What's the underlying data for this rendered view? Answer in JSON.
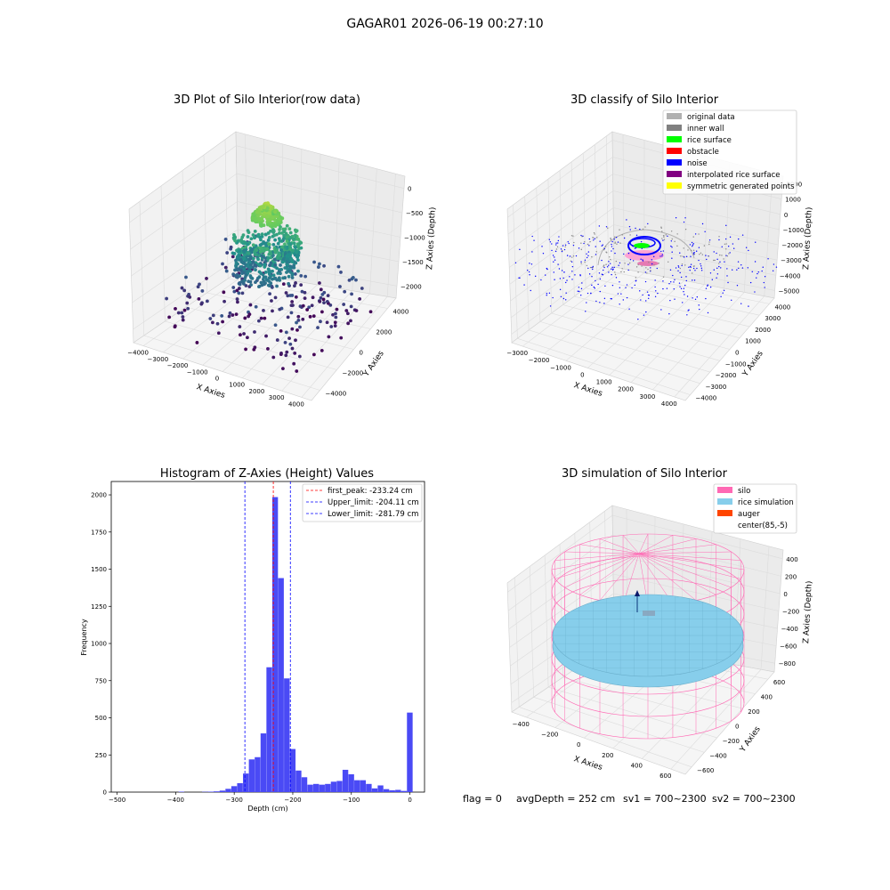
{
  "suptitle": "GAGAR01 2026-06-19 00:27:10",
  "footer": {
    "flag": "flag = 0",
    "avg": "avgDepth = 252 cm",
    "sv1": "sv1 = 700~2300",
    "sv2": "sv2 = 700~2300"
  },
  "chart_data": [
    {
      "type": "scatter",
      "title": "3D Plot of Silo Interior(row data)",
      "xlabel": "X Axies",
      "ylabel": "Y Axies",
      "zlabel": "Z Axies (Depth)",
      "xticks": [
        -4000,
        -3000,
        -2000,
        -1000,
        0,
        1000,
        2000,
        3000,
        4000
      ],
      "yticks": [
        -4000,
        -2000,
        0,
        2000,
        4000
      ],
      "zticks": [
        0,
        -500,
        -1000,
        -1500,
        -2000
      ],
      "xlim": [
        -4000,
        4500
      ],
      "ylim": [
        -4500,
        4500
      ],
      "zlim": [
        -2300,
        100
      ],
      "grid": true,
      "colormap": "viridis"
    },
    {
      "type": "scatter",
      "title": "3D classify of Silo Interior",
      "xlabel": "X Axies",
      "ylabel": "Y Axies",
      "zlabel": "Z Axies (Depth)",
      "xticks": [
        -3000,
        -2000,
        -1000,
        0,
        1000,
        2000,
        3000,
        4000
      ],
      "yticks": [
        -4000,
        -3000,
        -2000,
        -1000,
        0,
        1000,
        2000,
        3000,
        4000
      ],
      "zticks": [
        2000,
        1000,
        0,
        -1000,
        -2000,
        -3000,
        -4000,
        -5000
      ],
      "grid": true,
      "legend_position": "top-right",
      "legend": [
        {
          "label": "original data",
          "color": "#b0b0b0"
        },
        {
          "label": "inner wall",
          "color": "#808080"
        },
        {
          "label": "rice surface",
          "color": "#00ff00"
        },
        {
          "label": "obstacle",
          "color": "#ff0000"
        },
        {
          "label": "noise",
          "color": "#0000ff"
        },
        {
          "label": "interpolated rice surface",
          "color": "#800080"
        },
        {
          "label": "symmetric generated points",
          "color": "#ffff00"
        }
      ]
    },
    {
      "type": "bar",
      "title": "Histogram of Z-Axies (Height) Values",
      "xlabel": "Depth (cm)",
      "ylabel": "Frequency",
      "xlim": [
        -510,
        25
      ],
      "ylim": [
        0,
        2090
      ],
      "xticks": [
        -500,
        -400,
        -300,
        -200,
        -100,
        0
      ],
      "yticks": [
        0,
        250,
        500,
        750,
        1000,
        1250,
        1500,
        1750,
        2000
      ],
      "bin_width": 10,
      "color": "#4a4af5",
      "bins": [
        {
          "x": -390,
          "y": 3
        },
        {
          "x": -350,
          "y": 2
        },
        {
          "x": -340,
          "y": 3
        },
        {
          "x": -330,
          "y": 5
        },
        {
          "x": -320,
          "y": 10
        },
        {
          "x": -310,
          "y": 22
        },
        {
          "x": -300,
          "y": 40
        },
        {
          "x": -290,
          "y": 60
        },
        {
          "x": -280,
          "y": 125
        },
        {
          "x": -270,
          "y": 220
        },
        {
          "x": -260,
          "y": 235
        },
        {
          "x": -250,
          "y": 395
        },
        {
          "x": -240,
          "y": 840
        },
        {
          "x": -230,
          "y": 1985
        },
        {
          "x": -220,
          "y": 1440
        },
        {
          "x": -210,
          "y": 765
        },
        {
          "x": -200,
          "y": 290
        },
        {
          "x": -190,
          "y": 145
        },
        {
          "x": -180,
          "y": 100
        },
        {
          "x": -170,
          "y": 50
        },
        {
          "x": -160,
          "y": 55
        },
        {
          "x": -150,
          "y": 50
        },
        {
          "x": -140,
          "y": 55
        },
        {
          "x": -130,
          "y": 70
        },
        {
          "x": -120,
          "y": 75
        },
        {
          "x": -110,
          "y": 150
        },
        {
          "x": -100,
          "y": 120
        },
        {
          "x": -90,
          "y": 80
        },
        {
          "x": -80,
          "y": 80
        },
        {
          "x": -70,
          "y": 55
        },
        {
          "x": -60,
          "y": 25
        },
        {
          "x": -50,
          "y": 45
        },
        {
          "x": -40,
          "y": 20
        },
        {
          "x": -30,
          "y": 12
        },
        {
          "x": -20,
          "y": 15
        },
        {
          "x": -10,
          "y": 8
        },
        {
          "x": 0,
          "y": 535
        }
      ],
      "vlines": [
        {
          "label": "first_peak: -233.24 cm",
          "x": -233.24,
          "color": "#ff0000"
        },
        {
          "label": "Upper_limit: -204.11 cm",
          "x": -204.11,
          "color": "#0000ff"
        },
        {
          "label": "Lower_limit: -281.79 cm",
          "x": -281.79,
          "color": "#0000ff"
        }
      ],
      "legend_position": "top-right",
      "grid": false
    },
    {
      "type": "surface",
      "title": "3D simulation of Silo Interior",
      "xlabel": "X Axies",
      "ylabel": "Y Axies",
      "zlabel": "Z Axies (Depth)",
      "xticks": [
        -400,
        -200,
        0,
        200,
        400,
        600
      ],
      "yticks": [
        -600,
        -400,
        -200,
        0,
        200,
        400,
        600
      ],
      "zticks": [
        400,
        200,
        0,
        -200,
        -400,
        -600,
        -800
      ],
      "grid": true,
      "legend_position": "top-right",
      "legend": [
        {
          "label": "silo",
          "color": "#ff69b4"
        },
        {
          "label": "rice simulation",
          "color": "#87ceeb"
        },
        {
          "label": "auger",
          "color": "#ff4500"
        },
        {
          "label": "center(85,-5)",
          "color": "#ffffff"
        }
      ]
    }
  ]
}
